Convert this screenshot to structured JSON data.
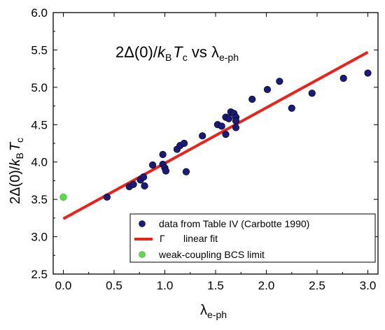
{
  "chart_data": {
    "type": "scatter",
    "title": "2Δ(0)/kBTc vs λe-ph",
    "xlabel": "λe-ph",
    "ylabel": "2Δ(0)/kBTc",
    "xlim": [
      -0.1,
      3.1
    ],
    "ylim": [
      2.5,
      6.0
    ],
    "xticks": [
      0.0,
      0.5,
      1.0,
      1.5,
      2.0,
      2.5,
      3.0
    ],
    "yticks": [
      2.5,
      3.0,
      3.5,
      4.0,
      4.5,
      5.0,
      5.5,
      6.0
    ],
    "grid": false,
    "legend_position": "bottom-right",
    "series": [
      {
        "name": "data from Table IV (Carbotte 1990)",
        "kind": "scatter",
        "color": "#1a1a7a",
        "points": [
          [
            0.43,
            3.53
          ],
          [
            0.65,
            3.67
          ],
          [
            0.69,
            3.7
          ],
          [
            0.76,
            3.76
          ],
          [
            0.79,
            3.8
          ],
          [
            0.8,
            3.68
          ],
          [
            0.88,
            3.96
          ],
          [
            0.98,
            3.97
          ],
          [
            0.98,
            4.1
          ],
          [
            1.0,
            3.92
          ],
          [
            1.01,
            3.88
          ],
          [
            1.12,
            4.17
          ],
          [
            1.15,
            4.22
          ],
          [
            1.19,
            4.25
          ],
          [
            1.21,
            3.87
          ],
          [
            1.37,
            4.35
          ],
          [
            1.52,
            4.5
          ],
          [
            1.56,
            4.48
          ],
          [
            1.6,
            4.37
          ],
          [
            1.6,
            4.6
          ],
          [
            1.65,
            4.67
          ],
          [
            1.68,
            4.65
          ],
          [
            1.7,
            4.6
          ],
          [
            1.7,
            4.55
          ],
          [
            1.7,
            4.46
          ],
          [
            1.63,
            4.58
          ],
          [
            1.86,
            4.84
          ],
          [
            2.01,
            4.97
          ],
          [
            2.13,
            5.08
          ],
          [
            2.25,
            4.72
          ],
          [
            2.45,
            4.92
          ],
          [
            2.76,
            5.12
          ],
          [
            3.0,
            5.19
          ]
        ]
      },
      {
        "name": "linear fit",
        "kind": "line",
        "color": "#e8231c",
        "x": [
          0.0,
          3.0
        ],
        "y": [
          3.24,
          5.47
        ]
      },
      {
        "name": "weak-coupling BCS limit",
        "kind": "scatter",
        "color": "#5fd84a",
        "points": [
          [
            0.0,
            3.53
          ]
        ]
      }
    ],
    "legend_symbol_extra": "Γ"
  }
}
